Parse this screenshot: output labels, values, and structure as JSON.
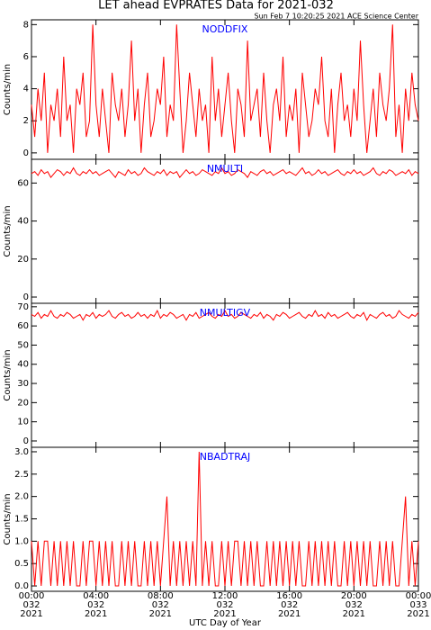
{
  "title": "LET ahead EVPRATES Data for 2021-032",
  "subtitle": "Sun Feb  7 10:20:25 2021 ACE Science Center",
  "x_label": "UTC Day of Year",
  "xlim": [
    0,
    24
  ],
  "xticks": [
    {
      "value": 0,
      "label": "00:00",
      "day": "032",
      "year": "2021"
    },
    {
      "value": 4,
      "label": "04:00",
      "day": "032",
      "year": "2021"
    },
    {
      "value": 8,
      "label": "08:00",
      "day": "032",
      "year": "2021"
    },
    {
      "value": 12,
      "label": "12:00",
      "day": "032",
      "year": "2021"
    },
    {
      "value": 16,
      "label": "16:00",
      "day": "032",
      "year": "2021"
    },
    {
      "value": 20,
      "label": "20:00",
      "day": "032",
      "year": "2021"
    },
    {
      "value": 24,
      "label": "00:00",
      "day": "033",
      "year": "2021"
    }
  ],
  "x": [
    0,
    0.2,
    0.4,
    0.6,
    0.8,
    1,
    1.2,
    1.4,
    1.6,
    1.8,
    2,
    2.2,
    2.4,
    2.6,
    2.8,
    3,
    3.2,
    3.4,
    3.6,
    3.8,
    4,
    4.2,
    4.4,
    4.6,
    4.8,
    5,
    5.2,
    5.4,
    5.6,
    5.8,
    6,
    6.2,
    6.4,
    6.6,
    6.8,
    7,
    7.2,
    7.4,
    7.6,
    7.8,
    8,
    8.2,
    8.4,
    8.6,
    8.8,
    9,
    9.2,
    9.4,
    9.6,
    9.8,
    10,
    10.2,
    10.4,
    10.6,
    10.8,
    11,
    11.2,
    11.4,
    11.6,
    11.8,
    12,
    12.2,
    12.4,
    12.6,
    12.8,
    13,
    13.2,
    13.4,
    13.6,
    13.8,
    14,
    14.2,
    14.4,
    14.6,
    14.8,
    15,
    15.2,
    15.4,
    15.6,
    15.8,
    16,
    16.2,
    16.4,
    16.6,
    16.8,
    17,
    17.2,
    17.4,
    17.6,
    17.8,
    18,
    18.2,
    18.4,
    18.6,
    18.8,
    19,
    19.2,
    19.4,
    19.6,
    19.8,
    20,
    20.2,
    20.4,
    20.6,
    20.8,
    21,
    21.2,
    21.4,
    21.6,
    21.8,
    22,
    22.2,
    22.4,
    22.6,
    22.8,
    23,
    23.2,
    23.4,
    23.6,
    23.8,
    24
  ],
  "chart_data": [
    {
      "type": "line",
      "annotation": "NODDFIX",
      "y_label": "Counts/min",
      "color": "#ff0000",
      "ylim": [
        -0.4,
        8.3
      ],
      "yticks": [
        0,
        2,
        4,
        6,
        8
      ],
      "values": [
        3,
        1,
        4,
        2,
        5,
        0,
        3,
        2,
        4,
        1,
        6,
        2,
        3,
        0,
        4,
        3,
        5,
        1,
        2,
        8,
        3,
        1,
        4,
        2,
        0,
        5,
        3,
        2,
        4,
        1,
        3,
        7,
        2,
        4,
        0,
        3,
        5,
        1,
        2,
        4,
        3,
        6,
        1,
        3,
        2,
        8,
        4,
        0,
        2,
        5,
        3,
        1,
        4,
        2,
        3,
        0,
        6,
        2,
        4,
        1,
        3,
        5,
        2,
        0,
        4,
        3,
        1,
        7,
        2,
        3,
        4,
        1,
        5,
        2,
        0,
        3,
        4,
        2,
        6,
        1,
        3,
        2,
        4,
        0,
        5,
        3,
        1,
        2,
        4,
        3,
        6,
        2,
        1,
        4,
        0,
        3,
        5,
        2,
        3,
        1,
        4,
        2,
        7,
        3,
        0,
        2,
        4,
        1,
        5,
        3,
        2,
        4,
        8,
        1,
        3,
        0,
        4,
        2,
        5,
        3,
        2
      ]
    },
    {
      "type": "line",
      "annotation": "NMULTI",
      "y_label": "Counts/min",
      "color": "#ff0000",
      "ylim": [
        -3.3,
        72.5
      ],
      "yticks": [
        0,
        20,
        40,
        60
      ],
      "values": [
        65,
        66,
        64,
        67,
        65,
        66,
        63,
        65,
        67,
        66,
        64,
        66,
        65,
        68,
        65,
        64,
        66,
        65,
        67,
        65,
        66,
        64,
        65,
        66,
        67,
        65,
        63,
        66,
        65,
        64,
        67,
        65,
        66,
        64,
        65,
        68,
        66,
        65,
        64,
        66,
        65,
        67,
        64,
        66,
        65,
        66,
        63,
        65,
        67,
        65,
        66,
        64,
        65,
        67,
        66,
        65,
        64,
        66,
        65,
        68,
        65,
        66,
        64,
        65,
        67,
        66,
        65,
        63,
        66,
        65,
        64,
        66,
        67,
        65,
        66,
        64,
        65,
        66,
        67,
        65,
        66,
        65,
        64,
        66,
        68,
        65,
        66,
        64,
        65,
        67,
        65,
        66,
        64,
        65,
        66,
        67,
        65,
        64,
        66,
        65,
        67,
        65,
        66,
        64,
        65,
        66,
        68,
        65,
        64,
        66,
        65,
        67,
        66,
        64,
        65,
        66,
        65,
        67,
        64,
        66,
        65
      ]
    },
    {
      "type": "line",
      "annotation": "NMULTIGV",
      "y_label": "Counts/min",
      "color": "#ff0000",
      "ylim": [
        -3.3,
        71.8
      ],
      "yticks": [
        0,
        10,
        20,
        30,
        40,
        50,
        60,
        70
      ],
      "values": [
        66,
        65,
        67,
        64,
        66,
        65,
        68,
        65,
        64,
        66,
        65,
        67,
        66,
        64,
        65,
        66,
        63,
        66,
        65,
        67,
        64,
        66,
        65,
        66,
        68,
        65,
        64,
        66,
        67,
        65,
        66,
        64,
        65,
        67,
        65,
        66,
        64,
        66,
        65,
        68,
        64,
        66,
        65,
        67,
        66,
        64,
        65,
        66,
        63,
        66,
        65,
        67,
        64,
        65,
        66,
        67,
        65,
        64,
        66,
        65,
        68,
        65,
        66,
        64,
        65,
        67,
        66,
        65,
        64,
        66,
        65,
        67,
        64,
        66,
        65,
        63,
        66,
        65,
        67,
        66,
        64,
        65,
        66,
        67,
        65,
        64,
        66,
        65,
        68,
        65,
        66,
        64,
        67,
        65,
        66,
        64,
        65,
        66,
        67,
        65,
        64,
        66,
        65,
        67,
        63,
        66,
        65,
        64,
        66,
        67,
        65,
        66,
        64,
        65,
        68,
        66,
        65,
        64,
        66,
        65,
        67
      ]
    },
    {
      "type": "line",
      "annotation": "NBADTRAJ",
      "y_label": "Counts/min",
      "color": "#ff0000",
      "ylim": [
        -0.12,
        3.1
      ],
      "yticks": [
        {
          "value": 0,
          "label": "0.0"
        },
        {
          "value": 0.5,
          "label": "0.5"
        },
        {
          "value": 1,
          "label": "1.0"
        },
        {
          "value": 1.5,
          "label": "1.5"
        },
        {
          "value": 2,
          "label": "2.0"
        },
        {
          "value": 2.5,
          "label": "2.5"
        },
        {
          "value": 3,
          "label": "3.0"
        }
      ],
      "values": [
        1,
        0,
        1,
        0,
        1,
        1,
        0,
        1,
        0,
        1,
        0,
        1,
        0,
        1,
        0,
        0,
        1,
        0,
        1,
        1,
        0,
        1,
        0,
        1,
        0,
        1,
        0,
        0,
        1,
        0,
        1,
        0,
        1,
        0,
        0,
        1,
        0,
        1,
        0,
        1,
        0,
        1,
        2,
        0,
        1,
        0,
        1,
        0,
        1,
        0,
        1,
        0,
        3,
        0,
        1,
        0,
        1,
        0,
        0,
        1,
        0,
        1,
        0,
        1,
        1,
        0,
        1,
        0,
        1,
        0,
        1,
        0,
        0,
        1,
        0,
        1,
        0,
        1,
        0,
        1,
        0,
        1,
        0,
        1,
        0,
        0,
        1,
        0,
        1,
        0,
        1,
        0,
        1,
        0,
        1,
        0,
        0,
        1,
        0,
        1,
        0,
        1,
        0,
        1,
        0,
        1,
        0,
        0,
        1,
        0,
        1,
        0,
        1,
        0,
        0,
        1,
        2,
        0,
        1,
        0,
        1
      ]
    }
  ]
}
